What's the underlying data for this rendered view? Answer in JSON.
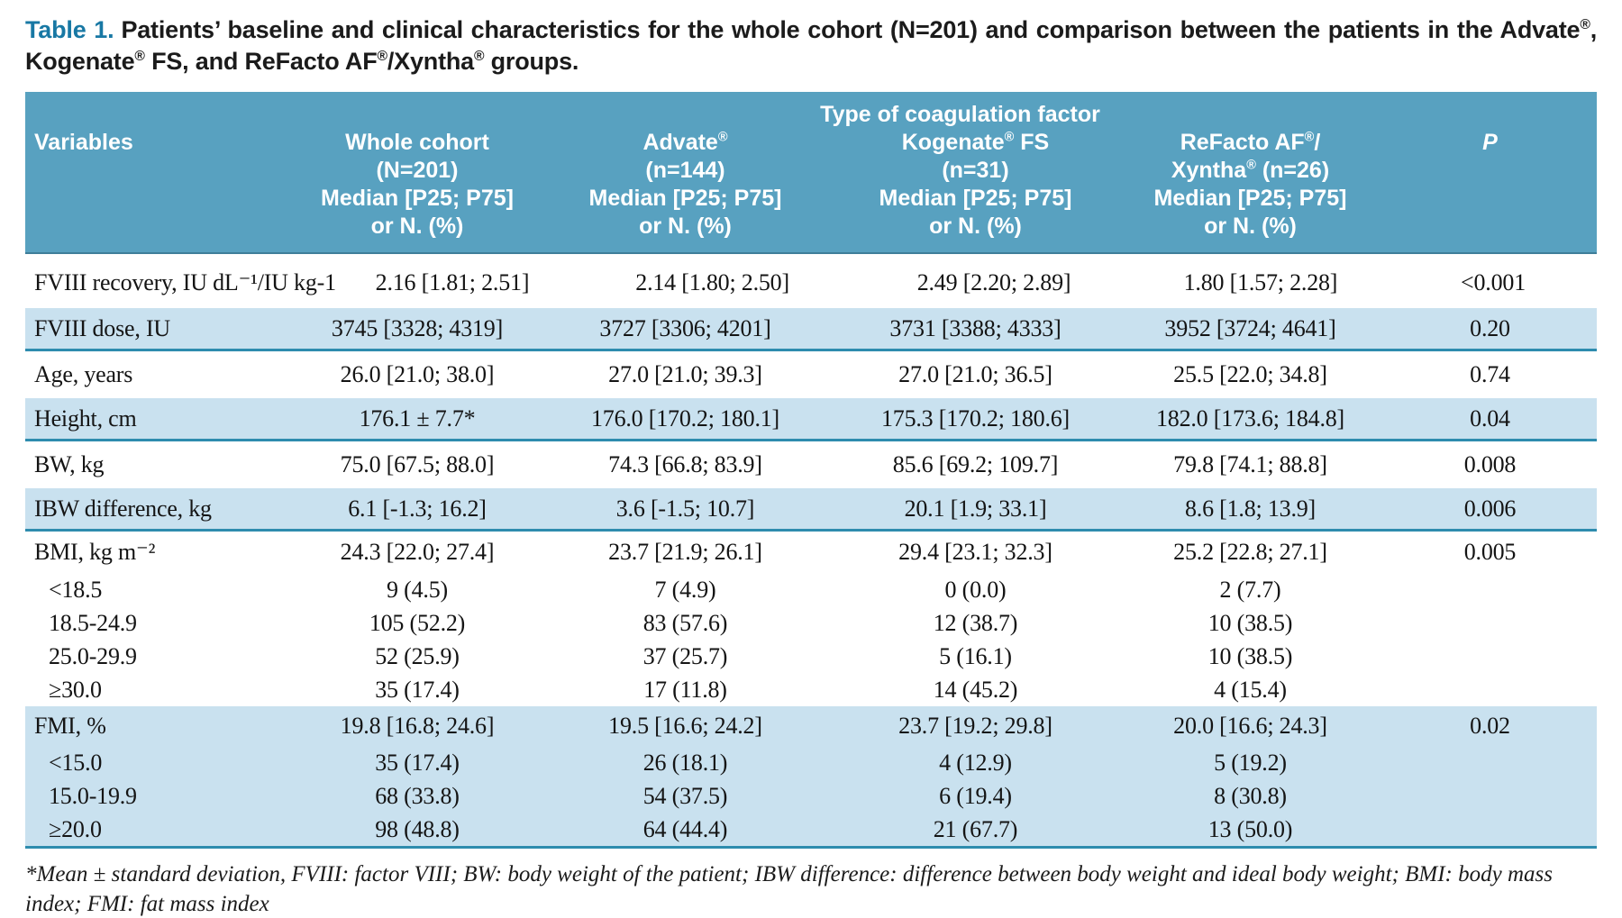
{
  "title": {
    "label": "Table 1.",
    "caption": "Patients’ baseline and clinical characteristics for the whole cohort (N=201) and comparison between the patients in the Advate®, Kogenate® FS, and ReFacto AF®/Xyntha® groups."
  },
  "table": {
    "header": {
      "span_label": "Type of coagulation factor",
      "variables_label": "Variables",
      "p_label": "P",
      "groups": [
        {
          "name": "whole-cohort",
          "lines": [
            "Whole cohort",
            "(N=201)",
            "Median [P25; P75]",
            "or N. (%)"
          ]
        },
        {
          "name": "advate",
          "lines": [
            "Advate®",
            "(n=144)",
            "Median [P25; P75]",
            "or N. (%)"
          ]
        },
        {
          "name": "kogenate-fs",
          "lines": [
            "Kogenate® FS",
            "(n=31)",
            "Median [P25; P75]",
            "or N. (%)"
          ]
        },
        {
          "name": "refacto-xyntha",
          "lines": [
            "ReFacto AF®/",
            "Xyntha® (n=26)",
            "Median [P25; P75]",
            "or N. (%)"
          ]
        }
      ]
    },
    "rows": [
      {
        "label": "FVIII recovery, IU dL⁻¹/IU kg-1",
        "type": "main",
        "shaded": false,
        "cells": [
          "2.16 [1.81; 2.51]",
          "2.14 [1.80; 2.50]",
          "2.49 [2.20; 2.89]",
          "1.80 [1.57; 2.28]",
          "<0.001"
        ]
      },
      {
        "label": "FVIII dose, IU",
        "type": "main",
        "shaded": true,
        "cells": [
          "3745 [3328; 4319]",
          "3727 [3306; 4201]",
          "3731 [3388; 4333]",
          "3952 [3724; 4641]",
          "0.20"
        ]
      },
      {
        "label": "Age, years",
        "type": "main",
        "shaded": false,
        "cells": [
          "26.0 [21.0; 38.0]",
          "27.0 [21.0; 39.3]",
          "27.0 [21.0; 36.5]",
          "25.5 [22.0; 34.8]",
          "0.74"
        ]
      },
      {
        "label": "Height, cm",
        "type": "main",
        "shaded": true,
        "cells": [
          "176.1 ± 7.7*",
          "176.0 [170.2; 180.1]",
          "175.3 [170.2; 180.6]",
          "182.0 [173.6; 184.8]",
          "0.04"
        ]
      },
      {
        "label": "BW, kg",
        "type": "main",
        "shaded": false,
        "cells": [
          "75.0 [67.5; 88.0]",
          "74.3 [66.8; 83.9]",
          "85.6 [69.2; 109.7]",
          "79.8 [74.1; 88.8]",
          "0.008"
        ]
      },
      {
        "label": "IBW difference, kg",
        "type": "main",
        "shaded": true,
        "cells": [
          "6.1 [-1.3; 16.2]",
          "3.6 [-1.5; 10.7]",
          "20.1 [1.9; 33.1]",
          "8.6 [1.8; 13.9]",
          "0.006"
        ]
      },
      {
        "label": "BMI, kg m⁻²",
        "type": "sect",
        "shaded": false,
        "cells": [
          "24.3 [22.0; 27.4]",
          "23.7 [21.9; 26.1]",
          "29.4 [23.1; 32.3]",
          "25.2 [22.8; 27.1]",
          "0.005"
        ]
      },
      {
        "label": "<18.5",
        "type": "sub",
        "shaded": false,
        "cells": [
          "9 (4.5)",
          "7 (4.9)",
          "0 (0.0)",
          "2 (7.7)",
          ""
        ]
      },
      {
        "label": "18.5-24.9",
        "type": "sub",
        "shaded": false,
        "cells": [
          "105 (52.2)",
          "83 (57.6)",
          "12 (38.7)",
          "10 (38.5)",
          ""
        ]
      },
      {
        "label": "25.0-29.9",
        "type": "sub",
        "shaded": false,
        "cells": [
          "52 (25.9)",
          "37 (25.7)",
          "5 (16.1)",
          "10 (38.5)",
          ""
        ]
      },
      {
        "label": "≥30.0",
        "type": "sub",
        "shaded": false,
        "cells": [
          "35 (17.4)",
          "17 (11.8)",
          "14 (45.2)",
          "4 (15.4)",
          ""
        ]
      },
      {
        "label": "FMI, %",
        "type": "sect",
        "shaded": true,
        "cells": [
          "19.8 [16.8; 24.6]",
          "19.5 [16.6; 24.2]",
          "23.7 [19.2; 29.8]",
          "20.0 [16.6; 24.3]",
          "0.02"
        ]
      },
      {
        "label": "<15.0",
        "type": "sub",
        "shaded": true,
        "cells": [
          "35 (17.4)",
          "26 (18.1)",
          "4 (12.9)",
          "5 (19.2)",
          ""
        ]
      },
      {
        "label": "15.0-19.9",
        "type": "sub",
        "shaded": true,
        "cells": [
          "68 (33.8)",
          "54 (37.5)",
          "6 (19.4)",
          "8 (30.8)",
          ""
        ]
      },
      {
        "label": "≥20.0",
        "type": "sub",
        "shaded": true,
        "cells": [
          "98 (48.8)",
          "64 (44.4)",
          "21 (67.7)",
          "13 (50.0)",
          ""
        ]
      }
    ]
  },
  "footnote": "*Mean ± standard deviation, FVIII: factor VIII; BW: body weight of the patient; IBW difference: difference between body weight and ideal body weight; BMI: body mass index; FMI: fat mass index",
  "colors": {
    "header_bg": "#58A1C0",
    "shaded_row_bg": "#C9E1EF",
    "separator": "#2E8CAE",
    "title_accent": "#1878A4",
    "text": "#1b1b1b"
  }
}
